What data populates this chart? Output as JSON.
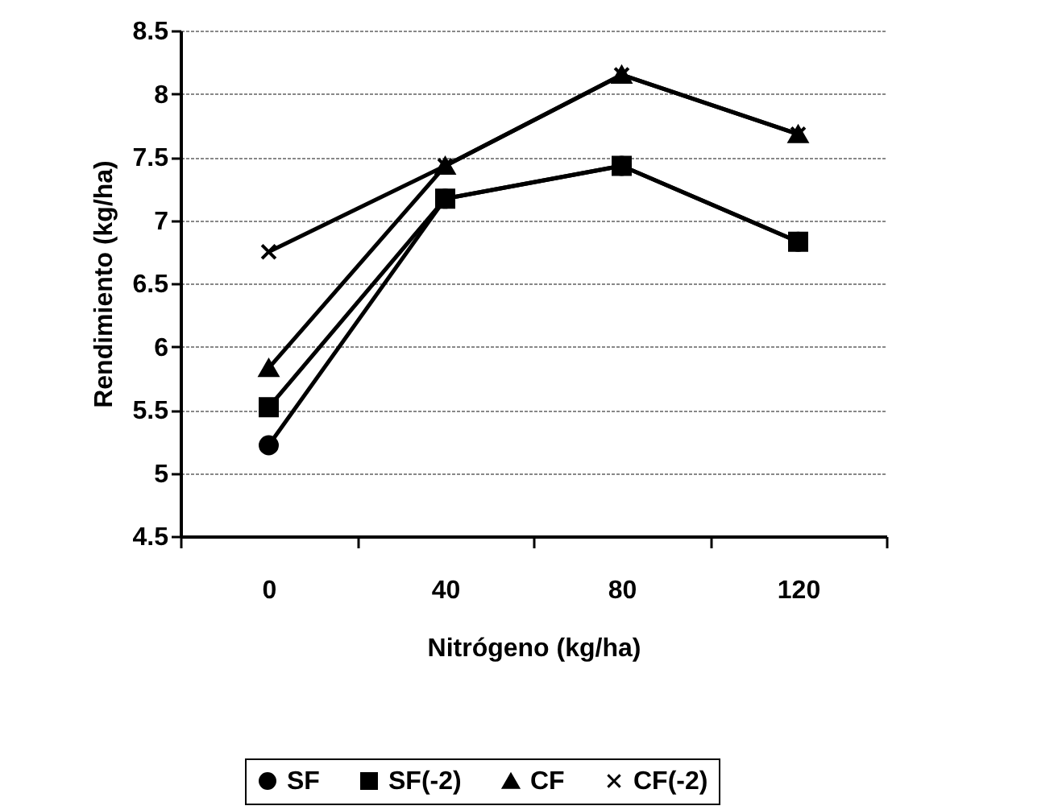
{
  "chart_data": {
    "type": "line",
    "xlabel": "Nitrógeno (kg/ha)",
    "ylabel": "Rendimiento (kg/ha)",
    "categories": [
      "0",
      "40",
      "80",
      "120"
    ],
    "series": [
      {
        "name": "SF",
        "color": "#000000",
        "marker": "circle",
        "values": [
          5.22,
          7.17,
          7.43,
          6.83
        ]
      },
      {
        "name": "SF(-2)",
        "color": "#000000",
        "marker": "square",
        "values": [
          5.52,
          7.17,
          7.43,
          6.83
        ]
      },
      {
        "name": "CF",
        "color": "#000000",
        "marker": "triangle",
        "values": [
          5.83,
          7.43,
          8.15,
          7.68
        ]
      },
      {
        "name": "CF(-2)",
        "color": "#000000",
        "marker": "cross",
        "values": [
          6.75,
          7.43,
          8.15,
          7.68
        ]
      }
    ],
    "ylim": [
      4.5,
      8.5
    ],
    "yticks": [
      4.5,
      5,
      5.5,
      6,
      6.5,
      7,
      7.5,
      8,
      8.5
    ],
    "grid": "y",
    "legend": "bottom",
    "line_style": "solid"
  }
}
